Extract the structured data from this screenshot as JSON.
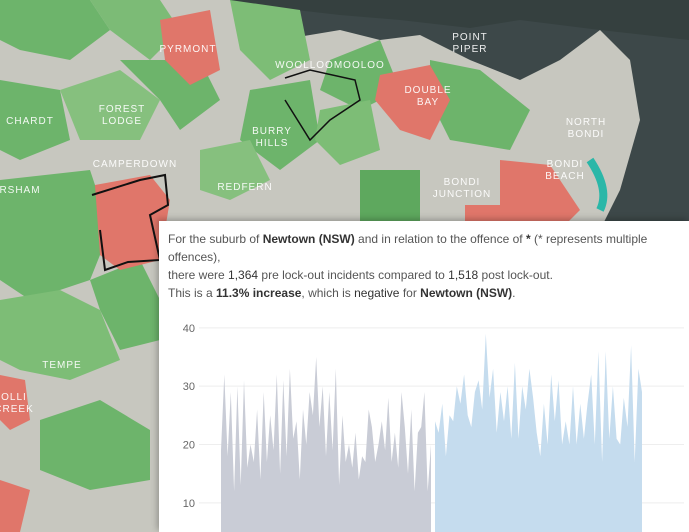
{
  "map": {
    "labels": [
      "PYRMONT",
      "POINT PIPER",
      "WOOLLOOMOOLOO",
      "DOUBLE BAY",
      "NORTH BONDI",
      "FOREST LODGE",
      "CHARDT",
      "BURRY HILLS",
      "CAMPERDOWN",
      "BONDI JUNCTION",
      "BONDI BEACH",
      "REDFERN",
      "RSHAM",
      "TEMPE",
      "OLLI CREEK"
    ],
    "colors": {
      "green": "#6db46b",
      "light_green": "#a6d29b",
      "red": "#e0766a",
      "grey": "#c7c7bf",
      "water": "#3d4849",
      "outline": "#111111"
    }
  },
  "tooltip": {
    "line1_pre": "For the suburb of ",
    "suburb": "Newtown (NSW)",
    "line1_mid": " and in relation to the offence of ",
    "offence": "*",
    "line1_post": " (* represents multiple offences),",
    "line2_pre": "there were ",
    "pre_count": "1,364",
    "line2_mid": " pre lock-out incidents compared to ",
    "post_count": "1,518",
    "line2_post": " post lock-out.",
    "line3_pre": "This is a ",
    "change": "11.3% increase",
    "line3_mid": ", which is ",
    "judgement": "negative",
    "line3_for": " for ",
    "suburb2": "Newtown (NSW)",
    "line3_post": "."
  },
  "chart_data": {
    "type": "area",
    "y_ticks": [
      10,
      20,
      30,
      40
    ],
    "ylim": [
      5,
      41
    ],
    "grid": true,
    "series": [
      {
        "color": "#c9ccd6",
        "values": [
          19,
          32,
          18,
          29,
          12,
          30,
          13,
          31,
          16,
          20,
          17,
          26,
          14,
          29,
          17,
          25,
          19,
          32,
          15,
          31,
          18,
          33,
          21,
          24,
          14,
          26,
          20,
          29,
          25,
          35,
          23,
          30,
          18,
          29,
          19,
          33,
          13,
          25,
          17,
          20,
          16,
          22,
          14,
          18,
          17,
          26,
          23,
          17,
          20,
          24,
          19,
          28,
          17,
          22,
          16,
          29,
          23,
          15,
          26,
          12,
          22,
          23,
          29,
          12,
          20
        ]
      },
      {
        "color": "#c5dcee",
        "values": [
          24,
          22,
          27,
          18,
          25,
          24,
          30,
          27,
          32,
          25,
          23,
          29,
          31,
          26,
          39,
          28,
          33,
          22,
          29,
          24,
          30,
          21,
          34,
          21,
          30,
          26,
          33,
          28,
          22,
          18,
          27,
          20,
          32,
          24,
          31,
          20,
          24,
          20,
          30,
          20,
          27,
          21,
          27,
          32,
          20,
          36,
          17,
          36,
          21,
          30,
          21,
          20,
          28,
          23,
          37,
          17,
          33,
          29
        ]
      }
    ]
  }
}
